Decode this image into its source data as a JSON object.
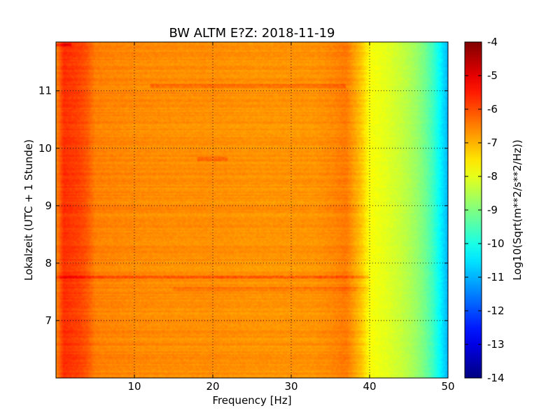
{
  "chart_data": {
    "type": "heatmap",
    "title": "BW ALTM E?Z: 2018-11-19",
    "xlabel": "Frequency [Hz]",
    "ylabel": "Lokalzeit (UTC + 1 Stunde)",
    "xlim": [
      0,
      50
    ],
    "ylim": [
      11.85,
      6.0
    ],
    "x_ticks": [
      10,
      20,
      30,
      40,
      50
    ],
    "y_ticks": [
      7,
      8,
      9,
      10,
      11
    ],
    "grid": true,
    "colormap": "jet",
    "colorbar": {
      "label": "Log10(Sqrt(m**2/s**2/Hz))",
      "range": [
        -14,
        -4
      ],
      "ticks": [
        -4,
        -5,
        -6,
        -7,
        -8,
        -9,
        -10,
        -11,
        -12,
        -13,
        -14
      ]
    },
    "frequency_profile": {
      "frequency_hz": [
        0,
        1,
        2,
        3,
        4,
        5,
        7,
        10,
        15,
        20,
        25,
        30,
        33,
        35,
        37,
        38,
        39,
        40,
        41,
        42,
        43,
        44,
        45,
        46,
        47,
        48,
        49,
        50
      ],
      "level_log10": [
        -6.6,
        -5.7,
        -5.8,
        -5.9,
        -6.1,
        -6.5,
        -6.55,
        -6.6,
        -6.65,
        -6.65,
        -6.7,
        -6.7,
        -6.7,
        -6.6,
        -6.45,
        -6.8,
        -7.2,
        -7.8,
        -7.9,
        -8.0,
        -8.15,
        -8.3,
        -8.5,
        -8.75,
        -9.1,
        -9.6,
        -10.3,
        -11.0
      ]
    },
    "horizontal_bands": [
      {
        "time_h": 7.75,
        "freq_range": [
          0,
          40
        ],
        "delta": 0.7
      },
      {
        "time_h": 7.55,
        "freq_range": [
          15,
          40
        ],
        "delta": 0.3
      },
      {
        "time_h": 11.08,
        "freq_range": [
          12,
          37
        ],
        "delta": 0.4
      },
      {
        "time_h": 9.82,
        "freq_range": [
          18,
          22
        ],
        "delta": 0.4
      },
      {
        "time_h": 11.8,
        "freq_range": [
          0,
          2
        ],
        "delta": 0.8
      }
    ]
  }
}
